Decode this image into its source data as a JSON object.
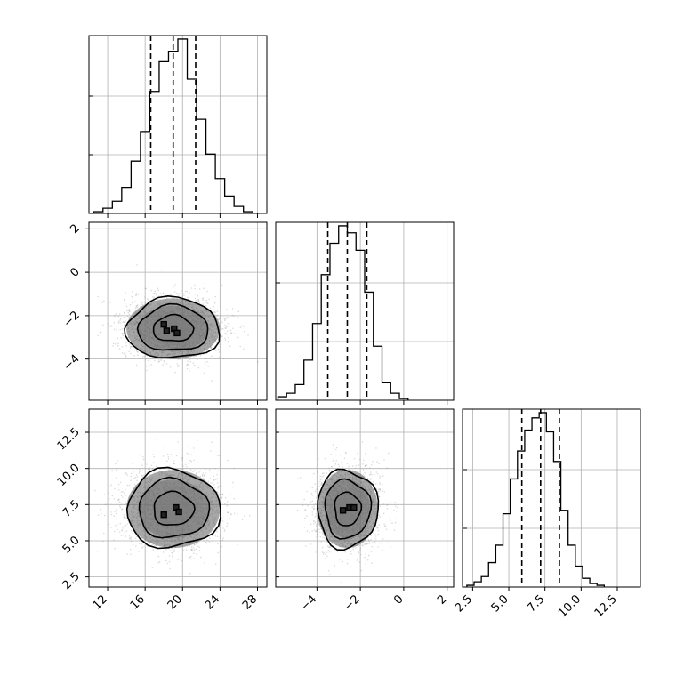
{
  "chart_data": {
    "type": "corner",
    "colors": {
      "line": "#000000",
      "grid": "#b0b0b0",
      "points": "#9a9a9a"
    },
    "parameters": [
      {
        "key": "p0",
        "range": [
          10,
          29
        ],
        "ticks": [
          12,
          16,
          20,
          24,
          28
        ],
        "tick_labels": [
          "12",
          "16",
          "20",
          "24",
          "28"
        ]
      },
      {
        "key": "p1",
        "range": [
          -5.9,
          2.3
        ],
        "ticks": [
          -4,
          -2,
          0,
          2
        ],
        "tick_labels": [
          "−4",
          "−2",
          "0",
          "2"
        ]
      },
      {
        "key": "p2",
        "range": [
          1.8,
          14.1
        ],
        "ticks": [
          2.5,
          5.0,
          7.5,
          10.0,
          12.5
        ],
        "tick_labels": [
          "2.5",
          "5.0",
          "7.5",
          "10.0",
          "12.5"
        ]
      }
    ],
    "marginals": [
      {
        "param": 0,
        "quantiles": [
          16.6,
          19.0,
          21.4
        ],
        "bin_edges": [
          10.5,
          11.5,
          12.5,
          13.5,
          14.5,
          15.5,
          16.5,
          17.5,
          18.5,
          19.5,
          20.5,
          21.5,
          22.5,
          23.5,
          24.5,
          25.5,
          26.5,
          27.5
        ],
        "counts": [
          0.01,
          0.03,
          0.07,
          0.15,
          0.3,
          0.47,
          0.7,
          0.87,
          0.93,
          1.0,
          0.77,
          0.54,
          0.34,
          0.2,
          0.1,
          0.04,
          0.01
        ]
      },
      {
        "param": 1,
        "quantiles": [
          -3.5,
          -2.6,
          -1.7
        ],
        "bin_edges": [
          -5.8,
          -5.4,
          -5.0,
          -4.6,
          -4.2,
          -3.8,
          -3.4,
          -3.0,
          -2.6,
          -2.2,
          -1.8,
          -1.4,
          -1.0,
          -0.6,
          -0.2,
          0.2
        ],
        "counts": [
          0.02,
          0.04,
          0.09,
          0.23,
          0.44,
          0.72,
          0.9,
          1.0,
          0.96,
          0.86,
          0.62,
          0.31,
          0.1,
          0.04,
          0.01
        ]
      },
      {
        "param": 2,
        "quantiles": [
          5.9,
          7.2,
          8.5
        ],
        "bin_edges": [
          2.1,
          2.6,
          3.1,
          3.6,
          4.1,
          4.6,
          5.1,
          5.6,
          6.1,
          6.6,
          7.1,
          7.6,
          8.1,
          8.6,
          9.1,
          9.6,
          10.1,
          10.6,
          11.1,
          11.6
        ],
        "counts": [
          0.01,
          0.03,
          0.06,
          0.14,
          0.24,
          0.42,
          0.62,
          0.78,
          0.9,
          0.97,
          1.0,
          0.89,
          0.72,
          0.44,
          0.24,
          0.12,
          0.05,
          0.02,
          0.01
        ]
      }
    ],
    "joints": [
      {
        "x": 0,
        "y": 1,
        "mean": [
          19.0,
          -2.6
        ],
        "sd": [
          2.5,
          0.7
        ],
        "contour_levels": [
          0.39,
          0.86,
          1.5,
          2.0
        ],
        "peak_points": [
          [
            18.0,
            -2.4
          ],
          [
            18.3,
            -2.7
          ],
          [
            19.1,
            -2.6
          ],
          [
            19.4,
            -2.8
          ]
        ]
      },
      {
        "x": 0,
        "y": 2,
        "mean": [
          19.0,
          7.2
        ],
        "sd": [
          2.5,
          1.35
        ],
        "contour_levels": [
          0.39,
          0.86,
          1.5,
          2.0
        ],
        "peak_points": [
          [
            18.0,
            6.8
          ],
          [
            19.3,
            7.3
          ],
          [
            19.6,
            7.0
          ]
        ]
      },
      {
        "x": 1,
        "y": 2,
        "mean": [
          -2.6,
          7.2
        ],
        "sd": [
          0.7,
          1.35
        ],
        "contour_levels": [
          0.39,
          0.86,
          1.5,
          2.0
        ],
        "peak_points": [
          [
            -2.8,
            7.1
          ],
          [
            -2.5,
            7.3
          ],
          [
            -2.3,
            7.3
          ]
        ]
      }
    ]
  }
}
